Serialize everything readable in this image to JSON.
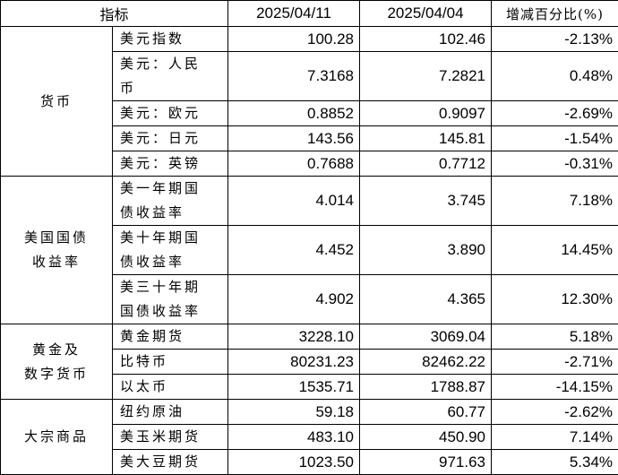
{
  "headers": [
    "指标",
    "2025/04/11",
    "2025/04/04",
    "增减百分比(%)"
  ],
  "groups": [
    {
      "category": "货币",
      "rows": [
        {
          "name": "美元指数",
          "v1": "100.28",
          "v2": "102.46",
          "pct": "-2.13%"
        },
        {
          "name": "美元：人民币",
          "v1": "7.3168",
          "v2": "7.2821",
          "pct": "0.48%"
        },
        {
          "name": "美元：欧元",
          "v1": "0.8852",
          "v2": "0.9097",
          "pct": "-2.69%"
        },
        {
          "name": "美元：日元",
          "v1": "143.56",
          "v2": "145.81",
          "pct": "-1.54%"
        },
        {
          "name": "美元：英镑",
          "v1": "0.7688",
          "v2": "0.7712",
          "pct": "-0.31%"
        }
      ]
    },
    {
      "category": "美国国债\n收益率",
      "rows": [
        {
          "name": "美一年期国债收益率",
          "v1": "4.014",
          "v2": "3.745",
          "pct": "7.18%"
        },
        {
          "name": "美十年期国债收益率",
          "v1": "4.452",
          "v2": "3.890",
          "pct": "14.45%"
        },
        {
          "name": "美三十年期国债收益率",
          "v1": "4.902",
          "v2": "4.365",
          "pct": "12.30%"
        }
      ]
    },
    {
      "category": "黄金及\n数字货币",
      "rows": [
        {
          "name": "黄金期货",
          "v1": "3228.10",
          "v2": "3069.04",
          "pct": "5.18%"
        },
        {
          "name": "比特币",
          "v1": "80231.23",
          "v2": "82462.22",
          "pct": "-2.71%"
        },
        {
          "name": "以太币",
          "v1": "1535.71",
          "v2": "1788.87",
          "pct": "-14.15%"
        }
      ]
    },
    {
      "category": "大宗商品",
      "rows": [
        {
          "name": "纽约原油",
          "v1": "59.18",
          "v2": "60.77",
          "pct": "-2.62%"
        },
        {
          "name": "美玉米期货",
          "v1": "483.10",
          "v2": "450.90",
          "pct": "7.14%"
        },
        {
          "name": "美大豆期货",
          "v1": "1023.50",
          "v2": "971.63",
          "pct": "5.34%"
        }
      ]
    }
  ]
}
